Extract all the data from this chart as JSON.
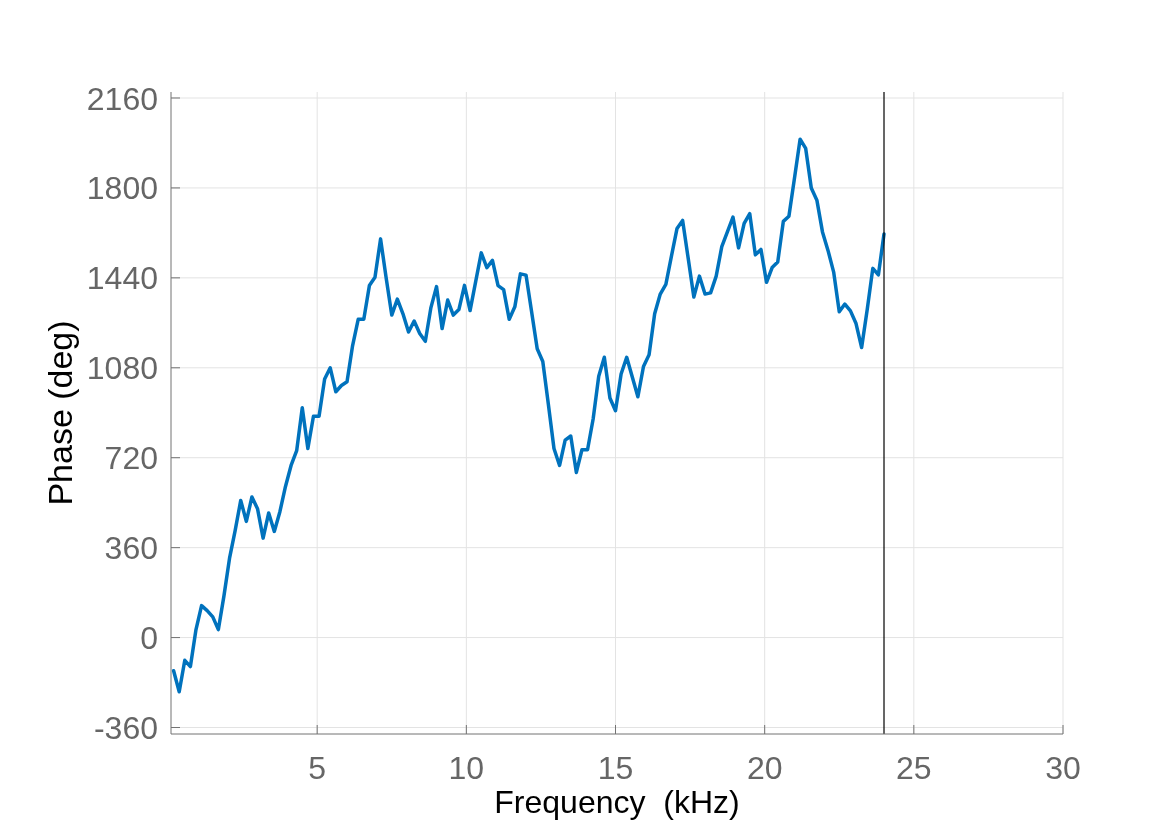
{
  "chart_data": {
    "type": "line",
    "xlabel": "Frequency  (kHz)",
    "ylabel": "Phase (deg)",
    "x": [
      0.1875,
      0.375,
      0.5625,
      0.75,
      0.9375,
      1.125,
      1.3125,
      1.5,
      1.6875,
      1.875,
      2.0625,
      2.25,
      2.4375,
      2.625,
      2.8125,
      3,
      3.1875,
      3.375,
      3.5625,
      3.75,
      3.9375,
      4.125,
      4.3125,
      4.5,
      4.6875,
      4.875,
      5.0625,
      5.25,
      5.4375,
      5.625,
      5.8125,
      6,
      6.1875,
      6.375,
      6.5625,
      6.75,
      6.9375,
      7.125,
      7.3125,
      7.5,
      7.6875,
      7.875,
      8.0625,
      8.25,
      8.4375,
      8.625,
      8.8125,
      9,
      9.1875,
      9.375,
      9.5625,
      9.75,
      9.9375,
      10.125,
      10.3125,
      10.5,
      10.6875,
      10.875,
      11.0625,
      11.25,
      11.4375,
      11.625,
      11.8125,
      12,
      12.1875,
      12.375,
      12.5625,
      12.75,
      12.9375,
      13.125,
      13.3125,
      13.5,
      13.6875,
      13.875,
      14.0625,
      14.25,
      14.4375,
      14.625,
      14.8125,
      15,
      15.1875,
      15.375,
      15.5625,
      15.75,
      15.9375,
      16.125,
      16.3125,
      16.5,
      16.6875,
      16.875,
      17.0625,
      17.25,
      17.4375,
      17.625,
      17.8125,
      18,
      18.1875,
      18.375,
      18.5625,
      18.75,
      18.9375,
      19.125,
      19.3125,
      19.5,
      19.6875,
      19.875,
      20.0625,
      20.25,
      20.4375,
      20.625,
      20.8125,
      21,
      21.1875,
      21.375,
      21.5625,
      21.75,
      21.9375,
      22.125,
      22.3125,
      22.5,
      22.6875,
      22.875,
      23.0625,
      23.25,
      23.4375,
      23.625,
      23.8125,
      24
    ],
    "series": [
      {
        "color": "#0072bd",
        "values": [
          -133,
          -217,
          -91,
          -116,
          32,
          128,
          108,
          83,
          32,
          167,
          318,
          428,
          549,
          465,
          563,
          516,
          398,
          499,
          425,
          504,
          605,
          689,
          748,
          920,
          757,
          886,
          886,
          1035,
          1080,
          984,
          1009,
          1024,
          1169,
          1274,
          1274,
          1409,
          1442,
          1596,
          1439,
          1291,
          1355,
          1296,
          1223,
          1267,
          1217,
          1186,
          1321,
          1405,
          1237,
          1351,
          1291,
          1313,
          1410,
          1309,
          1425,
          1540,
          1481,
          1510,
          1409,
          1393,
          1274,
          1324,
          1456,
          1451,
          1304,
          1156,
          1105,
          933,
          757,
          689,
          790,
          807,
          661,
          752,
          752,
          875,
          1046,
          1122,
          959,
          908,
          1055,
          1122,
          1043,
          964,
          1085,
          1132,
          1296,
          1375,
          1414,
          1527,
          1638,
          1670,
          1517,
          1363,
          1447,
          1375,
          1380,
          1447,
          1565,
          1624,
          1683,
          1560,
          1658,
          1697,
          1532,
          1554,
          1422,
          1481,
          1503,
          1666,
          1687,
          1840,
          1995,
          1958,
          1800,
          1751,
          1624,
          1549,
          1463,
          1304,
          1335,
          1308,
          1257,
          1161,
          1313,
          1478,
          1452,
          1616
        ]
      }
    ],
    "xlim": [
      0.1,
      30
    ],
    "xticks": [
      5,
      10,
      15,
      20,
      25,
      30
    ],
    "ylim": [
      -386,
      2184
    ],
    "yticks": [
      -360,
      0,
      360,
      720,
      1080,
      1440,
      1800,
      2160
    ],
    "grid": true,
    "line_style": "solid",
    "ref_lines": [
      {
        "axis": "x",
        "value": 24,
        "color": "#000000"
      }
    ]
  }
}
